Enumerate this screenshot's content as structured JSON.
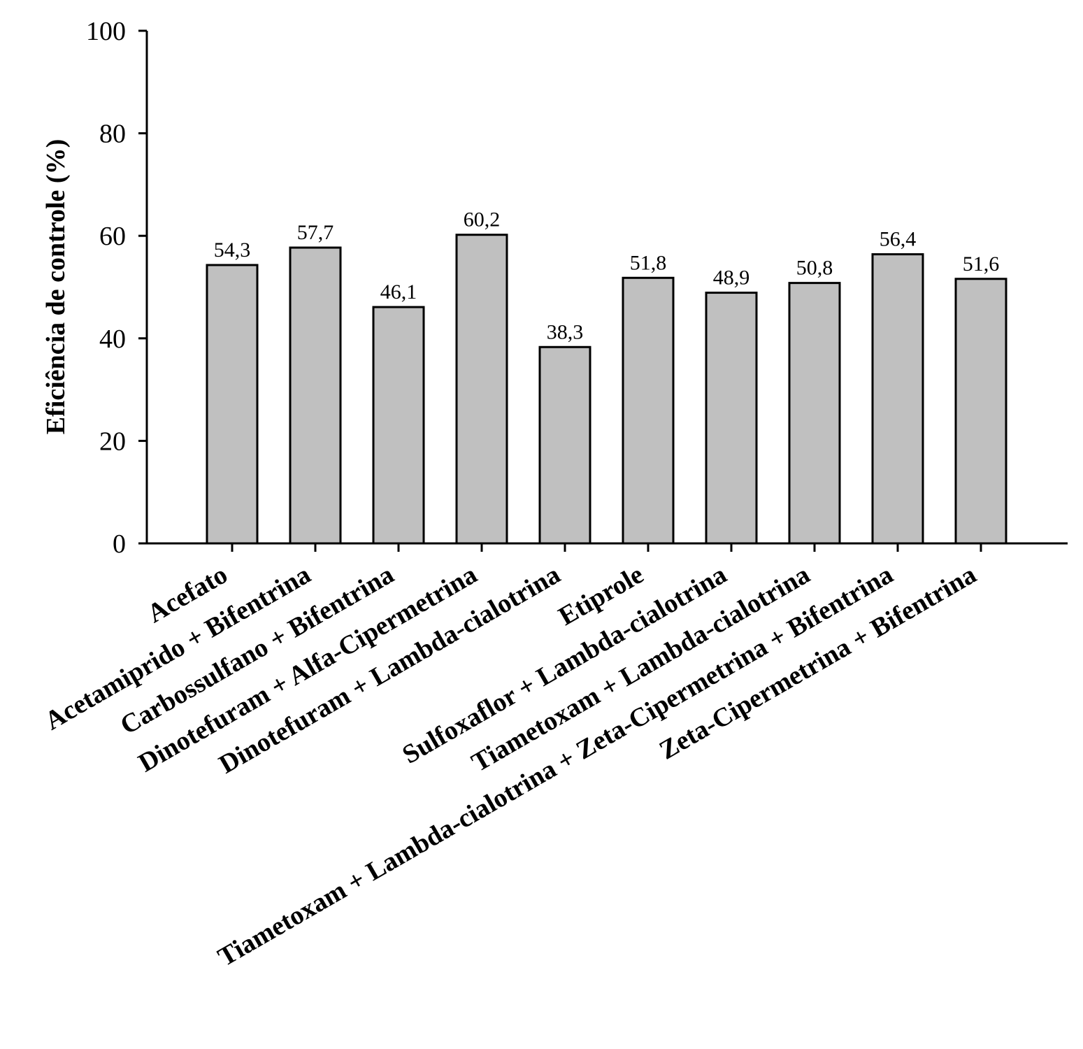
{
  "chart_data": {
    "type": "bar",
    "categories": [
      "Acefato",
      "Acetamiprido + Bifentrina",
      "Carbossulfano + Bifentrina",
      "Dinotefuram + Alfa-Cipermetrina",
      "Dinotefuram + Lambda-cialotrina",
      "Etiprole",
      "Sulfoxaflor + Lambda-cialotrina",
      "Tiametoxam + Lambda-cialotrina",
      "Tiametoxam + Lambda-cialotrina + Zeta-Cipermetrina + Bifentrina",
      "Zeta-Cipermetrina + Bifentrina"
    ],
    "values": [
      54.3,
      57.7,
      46.1,
      60.2,
      38.3,
      51.8,
      48.9,
      50.8,
      56.4,
      51.6
    ],
    "value_labels": [
      "54,3",
      "57,7",
      "46,1",
      "60,2",
      "38,3",
      "51,8",
      "48,9",
      "50,8",
      "56,4",
      "51,6"
    ],
    "ylabel": "Eficiência de controle (%)",
    "ylim": [
      0,
      100
    ],
    "yticks": [
      "0",
      "20",
      "40",
      "60",
      "80",
      "100"
    ],
    "grid": false,
    "legend": "none",
    "bar_color": "#c0c0c0"
  }
}
